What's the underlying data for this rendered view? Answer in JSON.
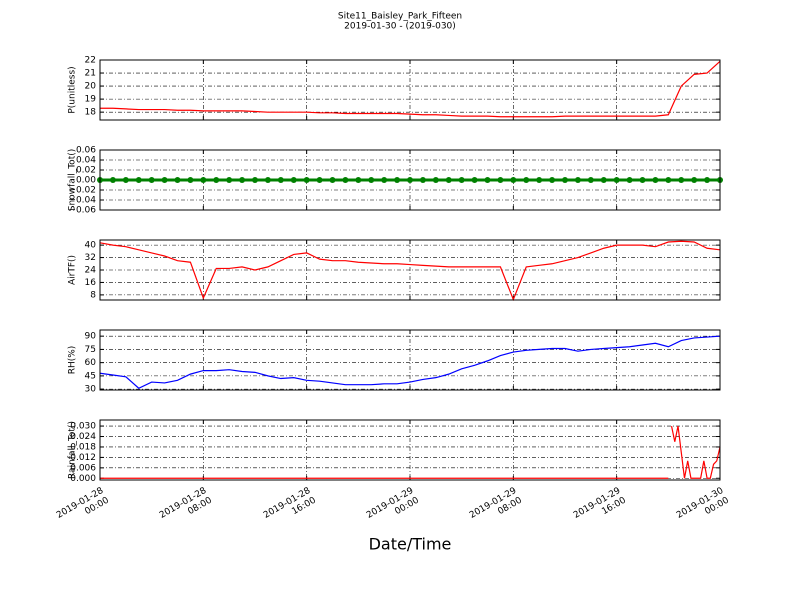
{
  "chart_data": [
    {
      "type": "line",
      "title": "Site11_Baisley_Park_Fifteen",
      "subtitle": "2019-01-30 - (2019-030)",
      "y_label": "P(unitless)",
      "color": "#ff0000",
      "grid": true,
      "xlim": [
        "2019-01-28 00:00",
        "2019-01-30 00:00"
      ],
      "ylim": [
        17.4,
        22
      ],
      "yticks": [
        18,
        19,
        20,
        21,
        22
      ],
      "x": [
        "2019-01-28 00:00",
        "2019-01-28 01:00",
        "2019-01-28 02:00",
        "2019-01-28 03:00",
        "2019-01-28 04:00",
        "2019-01-28 05:00",
        "2019-01-28 06:00",
        "2019-01-28 07:00",
        "2019-01-28 08:00",
        "2019-01-28 09:00",
        "2019-01-28 10:00",
        "2019-01-28 11:00",
        "2019-01-28 12:00",
        "2019-01-28 13:00",
        "2019-01-28 14:00",
        "2019-01-28 15:00",
        "2019-01-28 16:00",
        "2019-01-28 17:00",
        "2019-01-28 18:00",
        "2019-01-28 19:00",
        "2019-01-28 20:00",
        "2019-01-28 21:00",
        "2019-01-28 22:00",
        "2019-01-28 23:00",
        "2019-01-29 00:00",
        "2019-01-29 01:00",
        "2019-01-29 02:00",
        "2019-01-29 03:00",
        "2019-01-29 04:00",
        "2019-01-29 05:00",
        "2019-01-29 06:00",
        "2019-01-29 07:00",
        "2019-01-29 08:00",
        "2019-01-29 09:00",
        "2019-01-29 10:00",
        "2019-01-29 11:00",
        "2019-01-29 12:00",
        "2019-01-29 13:00",
        "2019-01-29 14:00",
        "2019-01-29 15:00",
        "2019-01-29 16:00",
        "2019-01-29 17:00",
        "2019-01-29 18:00",
        "2019-01-29 19:00",
        "2019-01-29 20:00",
        "2019-01-29 21:00",
        "2019-01-29 22:00",
        "2019-01-29 23:00",
        "2019-01-30 00:00"
      ],
      "values": [
        18.3,
        18.3,
        18.25,
        18.2,
        18.2,
        18.2,
        18.15,
        18.15,
        18.1,
        18.1,
        18.1,
        18.1,
        18.05,
        18.0,
        18.0,
        18.0,
        18.0,
        17.95,
        17.95,
        17.9,
        17.9,
        17.9,
        17.9,
        17.9,
        17.85,
        17.8,
        17.8,
        17.75,
        17.7,
        17.7,
        17.7,
        17.65,
        17.65,
        17.65,
        17.65,
        17.65,
        17.7,
        17.7,
        17.7,
        17.7,
        17.7,
        17.7,
        17.7,
        17.7,
        17.8,
        20.0,
        20.9,
        21.0,
        21.9
      ]
    },
    {
      "type": "line",
      "y_label": "Snowfall_Tot()",
      "color": "#008000",
      "marker": "o",
      "grid": true,
      "xlim": [
        "2019-01-28 00:00",
        "2019-01-30 00:00"
      ],
      "ylim": [
        -0.06,
        0.06
      ],
      "yticks": [
        {
          "value": -0.06,
          "label": "−0.06"
        },
        {
          "value": -0.04,
          "label": "−0.04"
        },
        {
          "value": -0.02,
          "label": "−0.02"
        },
        {
          "value": 0,
          "label": "0.00"
        },
        {
          "value": 0.02,
          "label": "0.02"
        },
        {
          "value": 0.04,
          "label": "0.04"
        },
        {
          "value": 0.06,
          "label": "0.06"
        }
      ],
      "x": [
        "2019-01-28 00:00",
        "2019-01-28 01:00",
        "2019-01-28 02:00",
        "2019-01-28 03:00",
        "2019-01-28 04:00",
        "2019-01-28 05:00",
        "2019-01-28 06:00",
        "2019-01-28 07:00",
        "2019-01-28 08:00",
        "2019-01-28 09:00",
        "2019-01-28 10:00",
        "2019-01-28 11:00",
        "2019-01-28 12:00",
        "2019-01-28 13:00",
        "2019-01-28 14:00",
        "2019-01-28 15:00",
        "2019-01-28 16:00",
        "2019-01-28 17:00",
        "2019-01-28 18:00",
        "2019-01-28 19:00",
        "2019-01-28 20:00",
        "2019-01-28 21:00",
        "2019-01-28 22:00",
        "2019-01-28 23:00",
        "2019-01-29 00:00",
        "2019-01-29 01:00",
        "2019-01-29 02:00",
        "2019-01-29 03:00",
        "2019-01-29 04:00",
        "2019-01-29 05:00",
        "2019-01-29 06:00",
        "2019-01-29 07:00",
        "2019-01-29 08:00",
        "2019-01-29 09:00",
        "2019-01-29 10:00",
        "2019-01-29 11:00",
        "2019-01-29 12:00",
        "2019-01-29 13:00",
        "2019-01-29 14:00",
        "2019-01-29 15:00",
        "2019-01-29 16:00",
        "2019-01-29 17:00",
        "2019-01-29 18:00",
        "2019-01-29 19:00",
        "2019-01-29 20:00",
        "2019-01-29 21:00",
        "2019-01-29 22:00",
        "2019-01-29 23:00",
        "2019-01-30 00:00"
      ],
      "values": [
        0,
        0,
        0,
        0,
        0,
        0,
        0,
        0,
        0,
        0,
        0,
        0,
        0,
        0,
        0,
        0,
        0,
        0,
        0,
        0,
        0,
        0,
        0,
        0,
        0,
        0,
        0,
        0,
        0,
        0,
        0,
        0,
        0,
        0,
        0,
        0,
        0,
        0,
        0,
        0,
        0,
        0,
        0,
        0,
        0,
        0,
        0,
        0,
        0
      ]
    },
    {
      "type": "line",
      "y_label": "AirTF()",
      "color": "#ff0000",
      "grid": true,
      "xlim": [
        "2019-01-28 00:00",
        "2019-01-30 00:00"
      ],
      "ylim": [
        4.7,
        43.3
      ],
      "yticks": [
        8,
        16,
        24,
        32,
        40
      ],
      "x": [
        "2019-01-28 00:00",
        "2019-01-28 01:00",
        "2019-01-28 02:00",
        "2019-01-28 03:00",
        "2019-01-28 04:00",
        "2019-01-28 05:00",
        "2019-01-28 06:00",
        "2019-01-28 07:00",
        "2019-01-28 08:00",
        "2019-01-28 09:00",
        "2019-01-28 10:00",
        "2019-01-28 11:00",
        "2019-01-28 12:00",
        "2019-01-28 13:00",
        "2019-01-28 14:00",
        "2019-01-28 15:00",
        "2019-01-28 16:00",
        "2019-01-28 17:00",
        "2019-01-28 18:00",
        "2019-01-28 19:00",
        "2019-01-28 20:00",
        "2019-01-28 21:00",
        "2019-01-28 22:00",
        "2019-01-28 23:00",
        "2019-01-29 00:00",
        "2019-01-29 01:00",
        "2019-01-29 02:00",
        "2019-01-29 03:00",
        "2019-01-29 04:00",
        "2019-01-29 05:00",
        "2019-01-29 06:00",
        "2019-01-29 07:00",
        "2019-01-29 08:00",
        "2019-01-29 09:00",
        "2019-01-29 10:00",
        "2019-01-29 11:00",
        "2019-01-29 12:00",
        "2019-01-29 13:00",
        "2019-01-29 14:00",
        "2019-01-29 15:00",
        "2019-01-29 16:00",
        "2019-01-29 17:00",
        "2019-01-29 18:00",
        "2019-01-29 19:00",
        "2019-01-29 20:00",
        "2019-01-29 21:00",
        "2019-01-29 22:00",
        "2019-01-29 23:00",
        "2019-01-30 00:00"
      ],
      "values": [
        41.5,
        40,
        39,
        37,
        35,
        33,
        30,
        29,
        6,
        25,
        25,
        26,
        24,
        26,
        30,
        34,
        35,
        31,
        30,
        30,
        29,
        28.5,
        28,
        28,
        27.5,
        27,
        26.5,
        26,
        26,
        26,
        26,
        26,
        5,
        26,
        27,
        28,
        30,
        32,
        35,
        38,
        40,
        40,
        40,
        39,
        42,
        42.5,
        42,
        38,
        37
      ]
    },
    {
      "type": "line",
      "y_label": "RH(%)",
      "color": "#0000ff",
      "grid": true,
      "xlim": [
        "2019-01-28 00:00",
        "2019-01-30 00:00"
      ],
      "ylim": [
        29,
        97
      ],
      "yticks": [
        30,
        45,
        60,
        75,
        90
      ],
      "x": [
        "2019-01-28 00:00",
        "2019-01-28 01:00",
        "2019-01-28 02:00",
        "2019-01-28 03:00",
        "2019-01-28 04:00",
        "2019-01-28 05:00",
        "2019-01-28 06:00",
        "2019-01-28 07:00",
        "2019-01-28 08:00",
        "2019-01-28 09:00",
        "2019-01-28 10:00",
        "2019-01-28 11:00",
        "2019-01-28 12:00",
        "2019-01-28 13:00",
        "2019-01-28 14:00",
        "2019-01-28 15:00",
        "2019-01-28 16:00",
        "2019-01-28 17:00",
        "2019-01-28 18:00",
        "2019-01-28 19:00",
        "2019-01-28 20:00",
        "2019-01-28 21:00",
        "2019-01-28 22:00",
        "2019-01-28 23:00",
        "2019-01-29 00:00",
        "2019-01-29 01:00",
        "2019-01-29 02:00",
        "2019-01-29 03:00",
        "2019-01-29 04:00",
        "2019-01-29 05:00",
        "2019-01-29 06:00",
        "2019-01-29 07:00",
        "2019-01-29 08:00",
        "2019-01-29 09:00",
        "2019-01-29 10:00",
        "2019-01-29 11:00",
        "2019-01-29 12:00",
        "2019-01-29 13:00",
        "2019-01-29 14:00",
        "2019-01-29 15:00",
        "2019-01-29 16:00",
        "2019-01-29 17:00",
        "2019-01-29 18:00",
        "2019-01-29 19:00",
        "2019-01-29 20:00",
        "2019-01-29 21:00",
        "2019-01-29 22:00",
        "2019-01-29 23:00",
        "2019-01-30 00:00"
      ],
      "values": [
        48,
        46,
        44,
        31,
        38,
        37,
        40,
        47,
        51,
        51,
        52,
        50,
        49,
        45,
        42,
        43,
        40,
        39,
        37,
        35,
        35,
        35,
        36,
        36,
        38,
        41,
        43,
        47,
        53,
        57,
        62,
        68,
        72,
        74,
        75,
        76,
        76,
        73,
        75,
        76,
        77,
        78,
        80,
        82,
        78,
        85,
        88,
        89,
        90
      ]
    },
    {
      "type": "line",
      "y_label": "Rainfall_Tot()",
      "x_label": "Date/Time",
      "color": "#ff0000",
      "grid": true,
      "xlim": [
        "2019-01-28 00:00",
        "2019-01-30 00:00"
      ],
      "ylim": [
        -0.001,
        0.0335
      ],
      "yticks": [
        {
          "value": 0,
          "label": "0.000"
        },
        {
          "value": 0.006,
          "label": "0.006"
        },
        {
          "value": 0.012,
          "label": "0.012"
        },
        {
          "value": 0.018,
          "label": "0.018"
        },
        {
          "value": 0.024,
          "label": "0.024"
        },
        {
          "value": 0.03,
          "label": "0.030"
        }
      ],
      "xticks": [
        {
          "value": "2019-01-28 00:00",
          "label": "2019-01-28\n00:00"
        },
        {
          "value": "2019-01-28 08:00",
          "label": "2019-01-28\n08:00"
        },
        {
          "value": "2019-01-28 16:00",
          "label": "2019-01-28\n16:00"
        },
        {
          "value": "2019-01-29 00:00",
          "label": "2019-01-29\n00:00"
        },
        {
          "value": "2019-01-29 08:00",
          "label": "2019-01-29\n08:00"
        },
        {
          "value": "2019-01-29 16:00",
          "label": "2019-01-29\n16:00"
        },
        {
          "value": "2019-01-30 00:00",
          "label": "2019-01-30\n00:00"
        }
      ],
      "x": [
        "2019-01-28 00:00",
        "2019-01-28 04:00",
        "2019-01-28 08:00",
        "2019-01-28 12:00",
        "2019-01-28 16:00",
        "2019-01-28 20:00",
        "2019-01-29 00:00",
        "2019-01-29 04:00",
        "2019-01-29 08:00",
        "2019-01-29 12:00",
        "2019-01-29 16:00",
        "2019-01-29 20:00",
        "2019-01-29 44:00",
        "2019-01-29 20:15",
        "2019-01-29 20:30",
        "2019-01-29 20:45",
        "2019-01-29 21:00",
        "2019-01-29 21:15",
        "2019-01-29 21:30",
        "2019-01-29 21:45",
        "2019-01-29 22:00",
        "2019-01-29 22:15",
        "2019-01-29 22:30",
        "2019-01-29 22:45",
        "2019-01-29 23:00",
        "2019-01-29 23:15",
        "2019-01-29 23:30",
        "2019-01-29 23:45",
        "2019-01-30 00:00"
      ],
      "values": [
        0,
        0,
        0,
        0,
        0,
        0,
        0,
        0,
        0,
        0,
        0,
        0,
        null,
        0.03,
        0.021,
        0.03,
        0.015,
        0,
        0.01,
        0,
        0,
        0,
        0,
        0.01,
        0,
        0,
        0.008,
        0.01,
        0.018
      ]
    }
  ]
}
